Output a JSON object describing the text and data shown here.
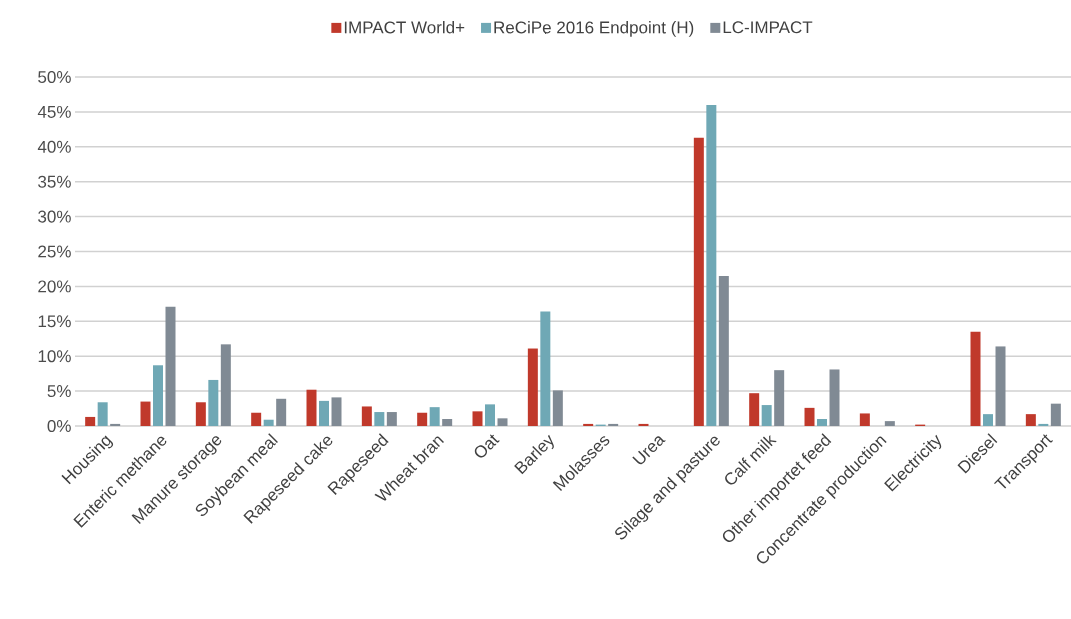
{
  "chart_data": {
    "type": "bar",
    "categories": [
      "Housing",
      "Enteric methane",
      "Manure storage",
      "Soybean meal",
      "Rapeseed cake",
      "Rapeseed",
      "Wheat bran",
      "Oat",
      "Barley",
      "Molasses",
      "Urea",
      "Silage and pasture",
      "Calf milk",
      "Other importet feed",
      "Concentrate production",
      "Electricity",
      "Diesel",
      "Transport"
    ],
    "series": [
      {
        "name": "IMPACT World+",
        "color": "#c0392b",
        "values": [
          1.3,
          3.5,
          3.4,
          1.9,
          5.2,
          2.8,
          1.9,
          2.1,
          11.1,
          0.3,
          0.3,
          41.3,
          4.7,
          2.6,
          1.8,
          0.2,
          13.5,
          1.7
        ]
      },
      {
        "name": "ReCiPe 2016 Endpoint (H)",
        "color": "#6fa8b5",
        "values": [
          3.4,
          8.7,
          6.6,
          0.9,
          3.6,
          2.0,
          2.7,
          3.1,
          16.4,
          0.2,
          0,
          46.0,
          3.0,
          1.0,
          0,
          0,
          1.7,
          0.3
        ]
      },
      {
        "name": "LC-IMPACT",
        "color": "#808a94",
        "values": [
          0.3,
          17.1,
          11.7,
          3.9,
          4.1,
          2.0,
          1.0,
          1.1,
          5.1,
          0.3,
          0,
          21.5,
          8.0,
          8.1,
          0.7,
          0,
          11.4,
          3.2
        ]
      }
    ],
    "ylim": [
      0,
      50
    ],
    "yticks": [
      {
        "value": 0,
        "label": "0%"
      },
      {
        "value": 5,
        "label": "5%"
      },
      {
        "value": 10,
        "label": "10%"
      },
      {
        "value": 15,
        "label": "15%"
      },
      {
        "value": 20,
        "label": "20%"
      },
      {
        "value": 25,
        "label": "25%"
      },
      {
        "value": 30,
        "label": "30%"
      },
      {
        "value": 35,
        "label": "35%"
      },
      {
        "value": 40,
        "label": "40%"
      },
      {
        "value": 45,
        "label": "45%"
      },
      {
        "value": 50,
        "label": "50%"
      }
    ],
    "grid": "y",
    "legend": "top"
  }
}
